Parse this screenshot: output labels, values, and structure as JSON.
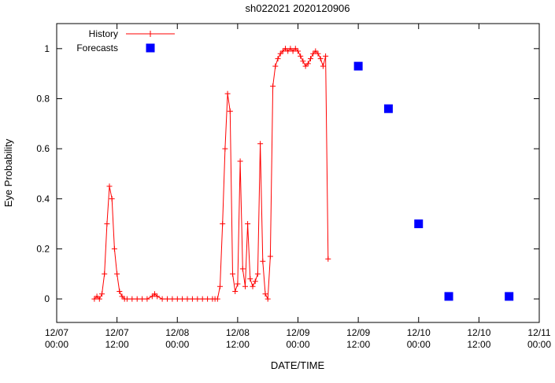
{
  "title": "sh022021 2020120906",
  "xlabel": "DATE/TIME",
  "ylabel": "Eye Probability",
  "chart_data": {
    "type": "line",
    "title": "sh022021 2020120906",
    "xlabel": "DATE/TIME",
    "ylabel": "Eye Probability",
    "x_unit": "hours since 12/07 00:00",
    "xlim": [
      0,
      96
    ],
    "ylim": [
      -0.094,
      1.1
    ],
    "grid": false,
    "background": "#ffffff",
    "axis_color": "#000000",
    "x_ticks": [
      {
        "pos": 0,
        "line1": "12/07",
        "line2": "00:00"
      },
      {
        "pos": 12,
        "line1": "12/07",
        "line2": "12:00"
      },
      {
        "pos": 24,
        "line1": "12/08",
        "line2": "00:00"
      },
      {
        "pos": 36,
        "line1": "12/08",
        "line2": "12:00"
      },
      {
        "pos": 48,
        "line1": "12/09",
        "line2": "00:00"
      },
      {
        "pos": 60,
        "line1": "12/09",
        "line2": "12:00"
      },
      {
        "pos": 72,
        "line1": "12/10",
        "line2": "00:00"
      },
      {
        "pos": 84,
        "line1": "12/10",
        "line2": "12:00"
      },
      {
        "pos": 96,
        "line1": "12/11",
        "line2": "00:00"
      }
    ],
    "y_ticks": [
      0,
      0.2,
      0.4,
      0.6,
      0.8,
      1
    ],
    "legend": {
      "position": "top-left",
      "entries": [
        "History",
        "Forecasts"
      ]
    },
    "series": [
      {
        "name": "History",
        "type": "line",
        "marker": "plus",
        "color": "#ff0000",
        "points": [
          [
            7.5,
            0.0
          ],
          [
            8,
            0.01
          ],
          [
            8.5,
            0.0
          ],
          [
            9,
            0.02
          ],
          [
            9.5,
            0.1
          ],
          [
            10,
            0.3
          ],
          [
            10.5,
            0.45
          ],
          [
            11,
            0.4
          ],
          [
            11.5,
            0.2
          ],
          [
            12,
            0.1
          ],
          [
            12.5,
            0.03
          ],
          [
            13,
            0.01
          ],
          [
            13.5,
            0.0
          ],
          [
            14,
            0.0
          ],
          [
            15,
            0.0
          ],
          [
            16,
            0.0
          ],
          [
            17,
            0.0
          ],
          [
            18,
            0.0
          ],
          [
            19,
            0.01
          ],
          [
            19.5,
            0.02
          ],
          [
            20,
            0.01
          ],
          [
            21,
            0.0
          ],
          [
            22,
            0.0
          ],
          [
            23,
            0.0
          ],
          [
            24,
            0.0
          ],
          [
            25,
            0.0
          ],
          [
            26,
            0.0
          ],
          [
            27,
            0.0
          ],
          [
            28,
            0.0
          ],
          [
            29,
            0.0
          ],
          [
            30,
            0.0
          ],
          [
            31,
            0.0
          ],
          [
            31.5,
            0.0
          ],
          [
            32,
            0.0
          ],
          [
            32.5,
            0.05
          ],
          [
            33,
            0.3
          ],
          [
            33.5,
            0.6
          ],
          [
            34,
            0.82
          ],
          [
            34.5,
            0.75
          ],
          [
            35,
            0.1
          ],
          [
            35.5,
            0.03
          ],
          [
            36,
            0.06
          ],
          [
            36.5,
            0.55
          ],
          [
            37,
            0.12
          ],
          [
            37.5,
            0.05
          ],
          [
            38,
            0.3
          ],
          [
            38.5,
            0.08
          ],
          [
            39,
            0.05
          ],
          [
            39.5,
            0.07
          ],
          [
            40,
            0.1
          ],
          [
            40.5,
            0.62
          ],
          [
            41,
            0.15
          ],
          [
            41.5,
            0.02
          ],
          [
            42,
            0.0
          ],
          [
            42.5,
            0.17
          ],
          [
            43,
            0.85
          ],
          [
            43.5,
            0.93
          ],
          [
            44,
            0.96
          ],
          [
            44.5,
            0.98
          ],
          [
            45,
            0.99
          ],
          [
            45.5,
            1.0
          ],
          [
            46,
            0.99
          ],
          [
            46.5,
            1.0
          ],
          [
            47,
            0.99
          ],
          [
            47.5,
            1.0
          ],
          [
            48,
            0.99
          ],
          [
            48.5,
            0.97
          ],
          [
            49,
            0.95
          ],
          [
            49.5,
            0.93
          ],
          [
            50,
            0.94
          ],
          [
            50.5,
            0.96
          ],
          [
            51,
            0.98
          ],
          [
            51.5,
            0.99
          ],
          [
            52,
            0.98
          ],
          [
            52.5,
            0.96
          ],
          [
            53,
            0.93
          ],
          [
            53.5,
            0.97
          ],
          [
            54,
            0.16
          ]
        ]
      },
      {
        "name": "Forecasts",
        "type": "scatter",
        "marker": "square",
        "color": "#0000ff",
        "points": [
          [
            60,
            0.93
          ],
          [
            66,
            0.76
          ],
          [
            72,
            0.3
          ],
          [
            78,
            0.01
          ],
          [
            90,
            0.01
          ]
        ]
      }
    ]
  }
}
